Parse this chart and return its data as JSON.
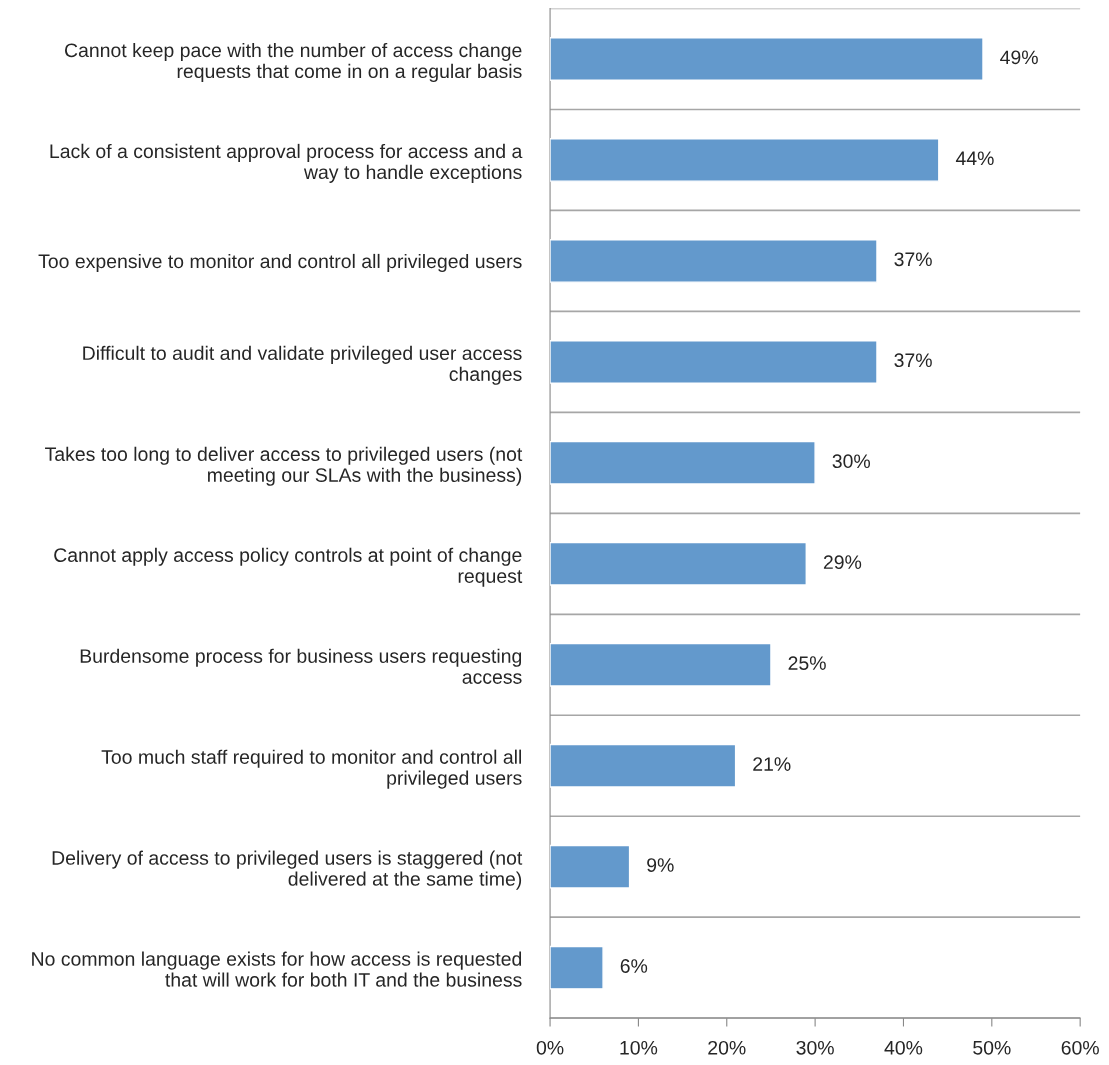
{
  "chart_data": {
    "type": "bar",
    "orientation": "horizontal",
    "categories": [
      "Cannot keep pace with the number of access change requests that come in on a regular basis",
      "Lack of a consistent approval process for access and a way to handle exceptions",
      "Too expensive to monitor and control all privileged users",
      "Difficult to audit and validate privileged user access changes",
      "Takes too long to deliver access to privileged users (not meeting our SLAs with the business)",
      "Cannot apply access policy controls at point of change request",
      "Burdensome process for business users requesting access",
      "Too much staff required to monitor and control all privileged users",
      "Delivery of access to privileged users is staggered (not delivered at the same time)",
      "No common language exists for how access is requested that will work for both IT and the business"
    ],
    "values": [
      49,
      44,
      37,
      37,
      30,
      29,
      25,
      21,
      9,
      6
    ],
    "value_labels": [
      "49%",
      "44%",
      "37%",
      "37%",
      "30%",
      "29%",
      "25%",
      "21%",
      "9%",
      "6%"
    ],
    "color": "#6399cc",
    "xlim": [
      0,
      60
    ],
    "xticks": [
      {
        "value": 0,
        "label": "0%"
      },
      {
        "value": 10,
        "label": "10%"
      },
      {
        "value": 20,
        "label": "20%"
      },
      {
        "value": 30,
        "label": "30%"
      },
      {
        "value": 40,
        "label": "40%"
      },
      {
        "value": 50,
        "label": "50%"
      },
      {
        "value": 60,
        "label": "60%"
      }
    ],
    "grid": "y"
  }
}
